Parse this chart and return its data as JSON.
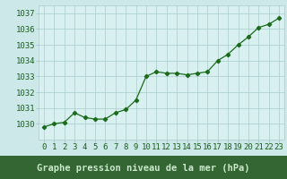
{
  "x": [
    0,
    1,
    2,
    3,
    4,
    5,
    6,
    7,
    8,
    9,
    10,
    11,
    12,
    13,
    14,
    15,
    16,
    17,
    18,
    19,
    20,
    21,
    22,
    23
  ],
  "y": [
    1029.8,
    1030.0,
    1030.1,
    1030.7,
    1030.4,
    1030.3,
    1030.3,
    1030.7,
    1030.9,
    1031.5,
    1033.0,
    1033.3,
    1033.2,
    1033.2,
    1033.1,
    1033.2,
    1033.3,
    1034.0,
    1034.4,
    1035.0,
    1035.5,
    1036.1,
    1036.3,
    1036.7
  ],
  "line_color": "#1a6b1a",
  "marker": "D",
  "marker_size": 2.2,
  "line_width": 0.9,
  "bg_color": "#cce8e8",
  "plot_bg_color": "#d8f0f0",
  "grid_color": "#aacccc",
  "label_bg_color": "#336633",
  "xlabel": "Graphe pression niveau de la mer (hPa)",
  "ylim": [
    1029.0,
    1037.5
  ],
  "yticks": [
    1030,
    1031,
    1032,
    1033,
    1034,
    1035,
    1036,
    1037
  ],
  "tick_label_color": "#1a5c1a",
  "xlabel_color": "#cce8cc",
  "xlabel_fontsize": 7.5,
  "tick_fontsize": 6.5
}
